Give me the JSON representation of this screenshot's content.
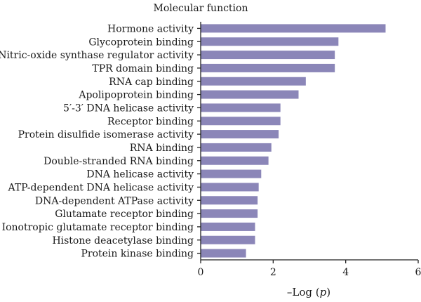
{
  "chart_data": {
    "type": "bar",
    "orientation": "horizontal",
    "title": "Molecular function",
    "xlabel_prefix": "–Log (",
    "xlabel_var": "p",
    "xlabel_suffix": ")",
    "xlim": [
      0,
      6
    ],
    "xticks": [
      "0",
      "2",
      "4",
      "6"
    ],
    "grid": false,
    "bar_color": "#8b86b8",
    "categories": [
      "Hormone activity",
      "Glycoprotein binding",
      "Nitric-oxide synthase regulator activity",
      "TPR domain binding",
      "RNA cap binding",
      "Apolipoprotein binding",
      "5′-3′ DNA helicase activity",
      "Receptor binding",
      "Protein disulfide isomerase activity",
      "RNA binding",
      "Double-stranded RNA binding",
      "DNA helicase activity",
      "ATP-dependent DNA helicase activity",
      "DNA-dependent ATPase activity",
      "Glutamate receptor binding",
      "Ionotropic glutamate receptor binding",
      "Histone deacetylase binding",
      "Protein kinase binding"
    ],
    "values": [
      5.1,
      3.8,
      3.7,
      3.7,
      2.9,
      2.7,
      2.2,
      2.2,
      2.15,
      1.95,
      1.87,
      1.67,
      1.6,
      1.57,
      1.57,
      1.5,
      1.5,
      1.25
    ]
  }
}
